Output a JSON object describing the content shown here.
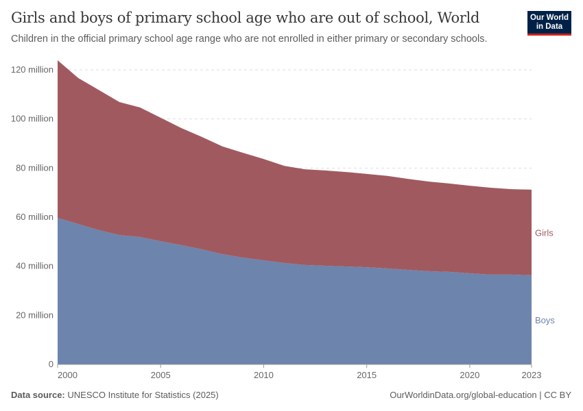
{
  "header": {
    "title": "Girls and boys of primary school age who are out of school, World",
    "subtitle": "Children in the official primary school age range who are not enrolled in either primary or secondary schools.",
    "logo": "Our World in Data"
  },
  "footer": {
    "source_label": "Data source:",
    "source": "UNESCO Institute for Statistics (2025)",
    "link": "OurWorldinData.org/global-education | CC BY"
  },
  "chart_data": {
    "type": "area",
    "stacked": true,
    "title": "Girls and boys of primary school age who are out of school, World",
    "xlabel": "",
    "ylabel": "",
    "xlim": [
      2000,
      2023
    ],
    "ylim": [
      0,
      120000000
    ],
    "x": [
      2000,
      2001,
      2002,
      2003,
      2004,
      2005,
      2006,
      2007,
      2008,
      2009,
      2010,
      2011,
      2012,
      2013,
      2014,
      2015,
      2016,
      2017,
      2018,
      2019,
      2020,
      2021,
      2022,
      2023
    ],
    "x_ticks": [
      "2000",
      "2005",
      "2010",
      "2015",
      "2020",
      "2023"
    ],
    "y_ticks": [
      "0",
      "20 million",
      "40 million",
      "60 million",
      "80 million",
      "100 million",
      "120 million"
    ],
    "grid": "horizontal dashed",
    "series": [
      {
        "name": "Boys",
        "color": "#6d84ad",
        "values": [
          59.7,
          57.2,
          54.7,
          52.7,
          51.9,
          50.2,
          48.6,
          46.9,
          44.9,
          43.5,
          42.4,
          41.3,
          40.5,
          40.2,
          39.9,
          39.6,
          39.1,
          38.5,
          38.0,
          37.7,
          37.1,
          36.6,
          36.6,
          36.3
        ]
      },
      {
        "name": "Girls",
        "color": "#a05a5f",
        "values": [
          64.2,
          59.5,
          57.1,
          54.2,
          52.8,
          50.3,
          47.7,
          45.8,
          43.9,
          42.7,
          41.3,
          39.6,
          39.0,
          38.8,
          38.5,
          38.0,
          37.7,
          37.1,
          36.5,
          36.0,
          35.7,
          35.4,
          34.8,
          34.9
        ]
      }
    ],
    "value_unit": "million"
  }
}
